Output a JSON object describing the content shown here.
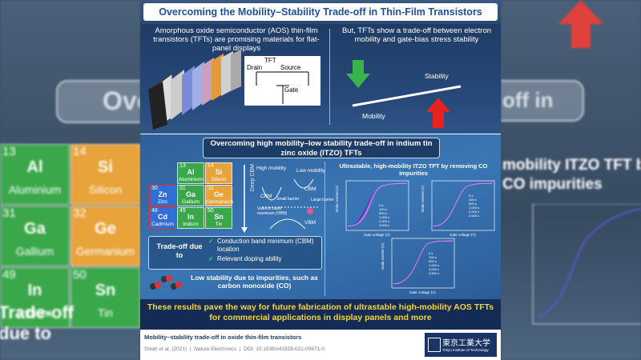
{
  "title": "Overcoming the Mobility–Stability Trade-off in Thin-Film Transistors",
  "top_left": {
    "text": "Amorphous oxide semiconductor (AOS) thin-film transistors (TFTs) are promising materials for flat-panel displays",
    "tft": "TFT",
    "drain": "Drain",
    "source": "Source",
    "gate": "Gate"
  },
  "top_right": {
    "text": "But, TFTs show a trade-off between electron mobility and gate-bias stress stability",
    "stability": "Stability",
    "mobility": "Mobility"
  },
  "middle": {
    "heading": "Overcoming high mobility–low stability trade-off in indium tin zinc oxide (ITZO) TFTs",
    "elements": [
      {
        "number": "13",
        "symbol": "Al",
        "name": "Aluminium",
        "color": "#3aa84a",
        "col": 1,
        "row": 0
      },
      {
        "number": "14",
        "symbol": "Si",
        "name": "Silicon",
        "color": "#e8a33a",
        "col": 2,
        "row": 0
      },
      {
        "number": "30",
        "symbol": "Zn",
        "name": "Zinc",
        "color": "#2f6fd6",
        "col": 0,
        "row": 1
      },
      {
        "number": "31",
        "symbol": "Ga",
        "name": "Gallium",
        "color": "#3aa84a",
        "col": 1,
        "row": 1
      },
      {
        "number": "32",
        "symbol": "Ge",
        "name": "Germanium",
        "color": "#e8a33a",
        "col": 2,
        "row": 1
      },
      {
        "number": "48",
        "symbol": "Cd",
        "name": "Cadmium",
        "color": "#2f6fd6",
        "col": 0,
        "row": 2
      },
      {
        "number": "49",
        "symbol": "In",
        "name": "Indium",
        "color": "#3aa84a",
        "col": 1,
        "row": 2
      },
      {
        "number": "50",
        "symbol": "Sn",
        "name": "Tin",
        "color": "#3aa84a",
        "col": 2,
        "row": 2
      }
    ],
    "deep_cbm": "Deep CBM",
    "band": {
      "high": "High mobility",
      "low": "Low mobility",
      "cbm_left": "CBM",
      "cbm_right": "CBM",
      "small": "Small barrier",
      "large": "Large barrier",
      "vbm_label": "Valence band maximum (VBM)",
      "vbm": "VBM"
    },
    "tradeoff": {
      "label": "Trade-off due to",
      "items": [
        "Conduction band minimum (CBM) location",
        "Relevant doping ability"
      ]
    },
    "co": "Low stability due to impurities, such as carbon monoxide (CO)",
    "plots": {
      "title": "Ultrastable, high-mobility ITZO TFT by removing CO impurities",
      "ylabel": "Drain current (A)",
      "xlabel": "Gate voltage (V)",
      "legend": [
        "0 s",
        "100 s",
        "500 s",
        "1,000 s",
        "2,000 s",
        "3,600 s"
      ]
    }
  },
  "banner": "These results pave the way for future fabrication of ultrastable high-mobility AOS TFTs for commercial applications in display panels and more",
  "footer": {
    "title": "Mobility–stability trade-off in oxide thin-film transistors",
    "citation": "Shiah et al. (2021)",
    "journal": "Nature Electronics",
    "doi": "DOI: 10.1038/s41928-021-00671-0",
    "logo": "東京工業大学",
    "logo_sub": "Tokyo Institute of Technology"
  },
  "background": {
    "left_title": "Overc",
    "right_title": "off in",
    "right_heading_1": "mobility ITZO TFT by r",
    "right_heading_2": "CO impurities",
    "tradeoff": "Trade-off due to"
  }
}
